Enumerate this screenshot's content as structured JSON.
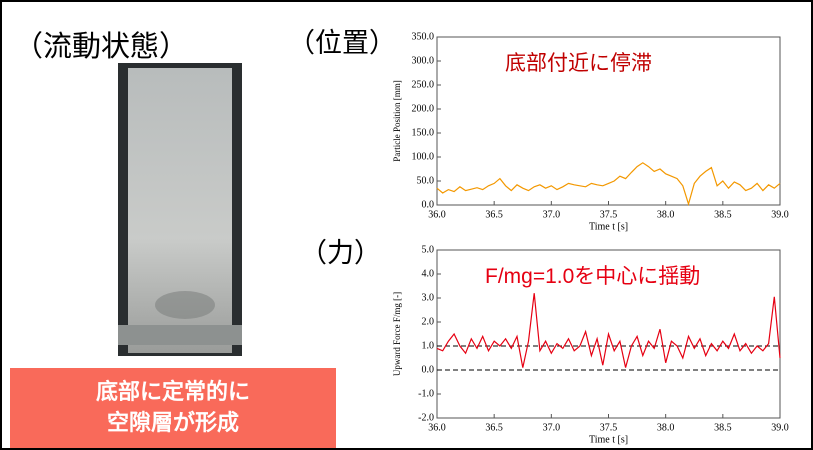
{
  "labels": {
    "flow_state": "（流動状態）",
    "position": "（位置）",
    "force": "（力）",
    "caption": [
      "底部に定常的に",
      "空隙層が形成"
    ]
  },
  "chart_data": [
    {
      "type": "line",
      "ylabel": "Particle Position [mm]",
      "xlabel": "Time t [s]",
      "annotation": "底部付近に停滞",
      "xlim": [
        36,
        39
      ],
      "ylim": [
        0,
        350
      ],
      "xticks": [
        {
          "value": 36,
          "label": "36.0"
        },
        {
          "value": 36.5,
          "label": "36.5"
        },
        {
          "value": 37,
          "label": "37.0"
        },
        {
          "value": 37.5,
          "label": "37.5"
        },
        {
          "value": 38,
          "label": "38.0"
        },
        {
          "value": 38.5,
          "label": "38.5"
        },
        {
          "value": 39,
          "label": "39.0"
        }
      ],
      "yticks": [
        {
          "value": 0,
          "label": "0.0"
        },
        {
          "value": 50,
          "label": "50.0"
        },
        {
          "value": 100,
          "label": "100.0"
        },
        {
          "value": 150,
          "label": "150.0"
        },
        {
          "value": 200,
          "label": "200.0"
        },
        {
          "value": 250,
          "label": "250.0"
        },
        {
          "value": 300,
          "label": "300.0"
        },
        {
          "value": 350,
          "label": "350.0"
        }
      ],
      "x": [
        36.0,
        36.05,
        36.1,
        36.15,
        36.2,
        36.25,
        36.3,
        36.35,
        36.4,
        36.45,
        36.5,
        36.55,
        36.6,
        36.65,
        36.7,
        36.75,
        36.8,
        36.85,
        36.9,
        36.95,
        37.0,
        37.05,
        37.1,
        37.15,
        37.2,
        37.25,
        37.3,
        37.35,
        37.4,
        37.45,
        37.5,
        37.55,
        37.6,
        37.65,
        37.7,
        37.75,
        37.8,
        37.85,
        37.9,
        37.95,
        38.0,
        38.05,
        38.1,
        38.15,
        38.2,
        38.25,
        38.3,
        38.35,
        38.4,
        38.45,
        38.5,
        38.55,
        38.6,
        38.65,
        38.7,
        38.75,
        38.8,
        38.85,
        38.9,
        38.95,
        39.0
      ],
      "series": [
        {
          "color": "#f39800",
          "values": [
            35,
            25,
            32,
            28,
            38,
            30,
            33,
            36,
            32,
            40,
            45,
            55,
            40,
            30,
            42,
            35,
            30,
            38,
            42,
            35,
            40,
            32,
            38,
            45,
            42,
            40,
            38,
            45,
            42,
            40,
            45,
            50,
            60,
            55,
            68,
            80,
            88,
            80,
            70,
            75,
            65,
            60,
            55,
            40,
            2,
            45,
            60,
            70,
            78,
            40,
            50,
            35,
            48,
            42,
            30,
            35,
            45,
            30,
            42,
            35,
            45
          ]
        }
      ]
    },
    {
      "type": "line",
      "ylabel": "Upward Force F/mg [-]",
      "xlabel": "Time t [s]",
      "annotation": "F/mg=1.0を中心に揺動",
      "xlim": [
        36,
        39
      ],
      "ylim": [
        -2,
        5
      ],
      "reference_lines": [
        1,
        0
      ],
      "xticks": [
        {
          "value": 36,
          "label": "36.0"
        },
        {
          "value": 36.5,
          "label": "36.5"
        },
        {
          "value": 37,
          "label": "37.0"
        },
        {
          "value": 37.5,
          "label": "37.5"
        },
        {
          "value": 38,
          "label": "38.0"
        },
        {
          "value": 38.5,
          "label": "38.5"
        },
        {
          "value": 39,
          "label": "39.0"
        }
      ],
      "yticks": [
        {
          "value": -2,
          "label": "-2.0"
        },
        {
          "value": -1,
          "label": "-1.0"
        },
        {
          "value": 0,
          "label": "0.0"
        },
        {
          "value": 1,
          "label": "1.0"
        },
        {
          "value": 2,
          "label": "2.0"
        },
        {
          "value": 3,
          "label": "3.0"
        },
        {
          "value": 4,
          "label": "4.0"
        },
        {
          "value": 5,
          "label": "5.0"
        }
      ],
      "x": [
        36.0,
        36.05,
        36.1,
        36.15,
        36.2,
        36.25,
        36.3,
        36.35,
        36.4,
        36.45,
        36.5,
        36.55,
        36.6,
        36.65,
        36.7,
        36.75,
        36.8,
        36.85,
        36.9,
        36.95,
        37.0,
        37.05,
        37.1,
        37.15,
        37.2,
        37.25,
        37.3,
        37.35,
        37.4,
        37.45,
        37.5,
        37.55,
        37.6,
        37.65,
        37.7,
        37.75,
        37.8,
        37.85,
        37.9,
        37.95,
        38.0,
        38.05,
        38.1,
        38.15,
        38.2,
        38.25,
        38.3,
        38.35,
        38.4,
        38.45,
        38.5,
        38.55,
        38.6,
        38.65,
        38.7,
        38.75,
        38.8,
        38.85,
        38.9,
        38.95,
        39.0
      ],
      "series": [
        {
          "color": "#e60012",
          "values": [
            0.9,
            0.8,
            1.2,
            1.5,
            1.0,
            0.7,
            1.3,
            0.9,
            1.4,
            0.8,
            1.2,
            1.0,
            1.3,
            0.9,
            1.4,
            0.1,
            1.2,
            3.2,
            0.8,
            1.2,
            0.7,
            1.1,
            0.9,
            1.3,
            0.8,
            1.0,
            1.6,
            0.6,
            1.3,
            0.2,
            1.5,
            0.8,
            1.2,
            0.1,
            1.0,
            1.4,
            0.6,
            1.2,
            0.9,
            1.7,
            0.3,
            1.2,
            1.0,
            0.5,
            1.4,
            0.9,
            1.3,
            0.6,
            1.1,
            0.8,
            1.2,
            0.9,
            1.5,
            0.8,
            1.1,
            0.7,
            1.0,
            0.8,
            1.1,
            3.05,
            0.5
          ]
        }
      ]
    }
  ]
}
